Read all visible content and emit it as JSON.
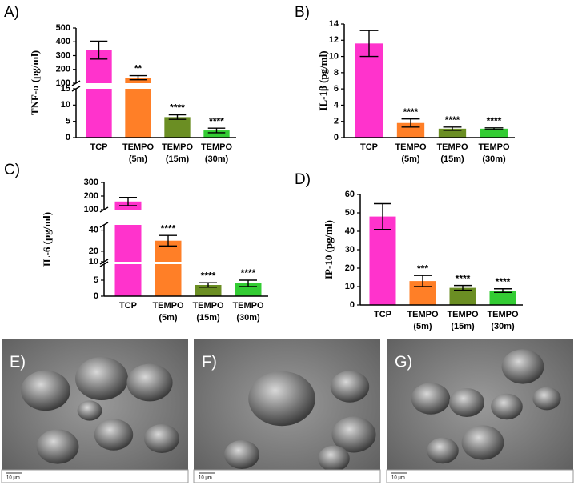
{
  "chart_data": [
    {
      "type": "bar",
      "panel": "A)",
      "ylabel": "TNF-α (pg/ml)",
      "categories": [
        [
          "TCP"
        ],
        [
          "TEMPO",
          "(5m)"
        ],
        [
          "TEMPO",
          "(15m)"
        ],
        [
          "TEMPO",
          "(30m)"
        ]
      ],
      "values": [
        340,
        140,
        6.3,
        2.2
      ],
      "errors": [
        65,
        15,
        0.7,
        0.7
      ],
      "annotations": [
        null,
        "**",
        "****",
        "****"
      ],
      "colors": [
        "#ff33cc",
        "#ff7f27",
        "#6b8e23",
        "#33cc33"
      ],
      "ysegments": [
        {
          "ylim": [
            0,
            15
          ],
          "yticks": [
            0,
            5,
            10,
            15
          ]
        },
        {
          "ylim": [
            100,
            500
          ],
          "yticks": [
            100,
            200,
            300,
            400,
            500
          ]
        }
      ]
    },
    {
      "type": "bar",
      "panel": "B)",
      "ylabel": "IL-1β (pg/ml)",
      "categories": [
        [
          "TCP"
        ],
        [
          "TEMPO",
          "(5m)"
        ],
        [
          "TEMPO",
          "(15m)"
        ],
        [
          "TEMPO",
          "(30m)"
        ]
      ],
      "values": [
        11.6,
        1.8,
        1.1,
        1.1
      ],
      "errors": [
        1.6,
        0.5,
        0.2,
        0.1
      ],
      "annotations": [
        null,
        "****",
        "****",
        "****"
      ],
      "colors": [
        "#ff33cc",
        "#ff7f27",
        "#6b8e23",
        "#33cc33"
      ],
      "ysegments": [
        {
          "ylim": [
            0,
            14
          ],
          "yticks": [
            0,
            2,
            4,
            6,
            8,
            10,
            12,
            14
          ]
        }
      ]
    },
    {
      "type": "bar",
      "panel": "C)",
      "ylabel": "IL-6 (pg/ml)",
      "categories": [
        [
          "TCP"
        ],
        [
          "TEMPO",
          "(5m)"
        ],
        [
          "TEMPO",
          "(15m)"
        ],
        [
          "TEMPO",
          "(30m)"
        ]
      ],
      "values": [
        160,
        30,
        3.5,
        4
      ],
      "errors": [
        30,
        5,
        0.7,
        1
      ],
      "annotations": [
        null,
        "****",
        "****",
        "****"
      ],
      "colors": [
        "#ff33cc",
        "#ff7f27",
        "#6b8e23",
        "#33cc33"
      ],
      "ysegments": [
        {
          "ylim": [
            0,
            10
          ],
          "yticks": [
            0,
            5,
            10
          ]
        },
        {
          "ylim": [
            10,
            45
          ],
          "yticks": [
            20,
            40
          ]
        },
        {
          "ylim": [
            100,
            300
          ],
          "yticks": [
            100,
            200,
            300
          ]
        }
      ]
    },
    {
      "type": "bar",
      "panel": "D)",
      "ylabel": "IP-10 (pg/ml)",
      "categories": [
        [
          "TCP"
        ],
        [
          "TEMPO",
          "(5m)"
        ],
        [
          "TEMPO",
          "(15m)"
        ],
        [
          "TEMPO",
          "(30m)"
        ]
      ],
      "values": [
        48,
        13,
        9.3,
        7.8
      ],
      "errors": [
        7,
        3,
        1.3,
        1
      ],
      "annotations": [
        null,
        "***",
        "****",
        "****"
      ],
      "colors": [
        "#ff33cc",
        "#ff7f27",
        "#6b8e23",
        "#33cc33"
      ],
      "ysegments": [
        {
          "ylim": [
            0,
            60
          ],
          "yticks": [
            0,
            10,
            20,
            30,
            40,
            50,
            60
          ]
        }
      ]
    }
  ],
  "images": [
    {
      "label": "E)",
      "scale": "10 μm"
    },
    {
      "label": "F)",
      "scale": "10 μm"
    },
    {
      "label": "G)",
      "scale": "10 μm"
    }
  ]
}
